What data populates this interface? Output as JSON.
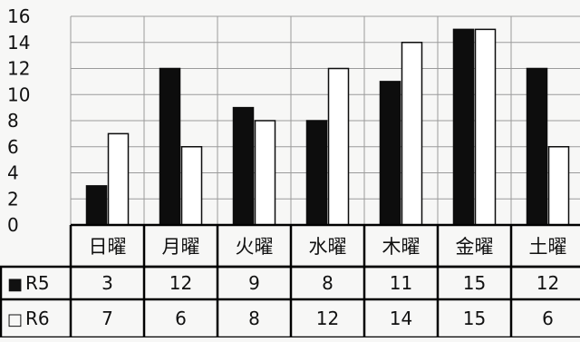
{
  "chart_data": {
    "type": "bar",
    "categories": [
      "日曜",
      "月曜",
      "火曜",
      "水曜",
      "木曜",
      "金曜",
      "土曜"
    ],
    "series": [
      {
        "name": "R5",
        "marker": "■",
        "color": "#0d0d0d",
        "values": [
          3,
          12,
          9,
          8,
          11,
          15,
          12
        ]
      },
      {
        "name": "R6",
        "marker": "□",
        "color": "#ffffff",
        "values": [
          7,
          6,
          8,
          12,
          14,
          15,
          6
        ]
      }
    ],
    "ylim": [
      0,
      16
    ],
    "yticks": [
      "0",
      "2",
      "4",
      "6",
      "8",
      "10",
      "12",
      "14",
      "16"
    ],
    "grid": true,
    "legend": "data table below chart",
    "title": "",
    "xlabel": "",
    "ylabel": ""
  }
}
